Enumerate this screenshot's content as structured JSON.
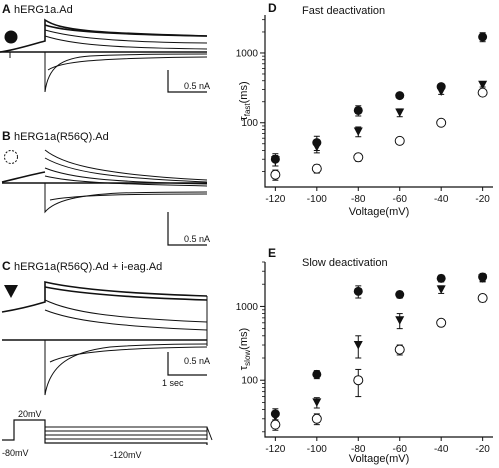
{
  "traces": {
    "A": {
      "letter": "A",
      "label": "hERG1a.Ad",
      "marker": "filled-circle"
    },
    "B": {
      "letter": "B",
      "label": "hERG1a(R56Q).Ad",
      "marker": "open-circle"
    },
    "C": {
      "letter": "C",
      "label": "hERG1a(R56Q).Ad + i-eag.Ad",
      "marker": "filled-triangle-down"
    },
    "scale_current": "0.5 nA",
    "scale_time": "1 sec",
    "protocol": {
      "step_label": "20mV",
      "hold_label": "-80mV",
      "test_label": "-120mV"
    }
  },
  "chart_data": [
    {
      "panel": "D",
      "type": "scatter",
      "title": "Fast deactivation",
      "xlabel": "Voltage(mV)",
      "ylabel": "τfast(ms)",
      "yscale": "log",
      "xlim": [
        -125,
        -15
      ],
      "ylim": [
        12,
        3500
      ],
      "x_ticks": [
        -120,
        -100,
        -80,
        -60,
        -40,
        -20
      ],
      "y_ticks": [
        100,
        1000
      ],
      "series": [
        {
          "marker": "filled-circle",
          "x": [
            -120,
            -100,
            -80,
            -60,
            -40,
            -20
          ],
          "y": [
            30,
            52,
            150,
            245,
            330,
            1700
          ],
          "err": [
            6,
            12,
            25,
            18,
            25,
            250
          ]
        },
        {
          "marker": "filled-triangle-down",
          "x": [
            -120,
            -100,
            -80,
            -60,
            -40,
            -20
          ],
          "y": [
            29,
            45,
            75,
            140,
            280,
            350
          ],
          "err": [
            5,
            8,
            12,
            18,
            25,
            25
          ]
        },
        {
          "marker": "open-circle",
          "x": [
            -120,
            -100,
            -80,
            -60,
            -40,
            -20
          ],
          "y": [
            18,
            22,
            32,
            55,
            100,
            270
          ],
          "err": [
            3,
            3,
            4,
            6,
            8,
            25
          ]
        }
      ]
    },
    {
      "panel": "E",
      "type": "scatter",
      "title": "Slow deactivation",
      "xlabel": "Voltage(mV)",
      "ylabel": "τslow(ms)",
      "yscale": "log",
      "xlim": [
        -125,
        -15
      ],
      "ylim": [
        17,
        4000
      ],
      "x_ticks": [
        -120,
        -100,
        -80,
        -60,
        -40,
        -20
      ],
      "y_ticks": [
        100,
        1000
      ],
      "series": [
        {
          "marker": "filled-circle",
          "x": [
            -120,
            -100,
            -80,
            -60,
            -40,
            -20
          ],
          "y": [
            35,
            120,
            1600,
            1450,
            2400,
            2500
          ],
          "err": [
            6,
            15,
            300,
            150,
            250,
            300
          ]
        },
        {
          "marker": "filled-triangle-down",
          "x": [
            -120,
            -100,
            -80,
            -60,
            -40,
            -20
          ],
          "y": [
            32,
            50,
            300,
            650,
            1700,
            2400
          ],
          "err": [
            5,
            8,
            100,
            150,
            200,
            250
          ]
        },
        {
          "marker": "open-circle",
          "x": [
            -120,
            -100,
            -80,
            -60,
            -40,
            -20
          ],
          "y": [
            25,
            30,
            100,
            260,
            600,
            1300
          ],
          "err": [
            4,
            5,
            40,
            40,
            60,
            150
          ]
        }
      ]
    }
  ]
}
